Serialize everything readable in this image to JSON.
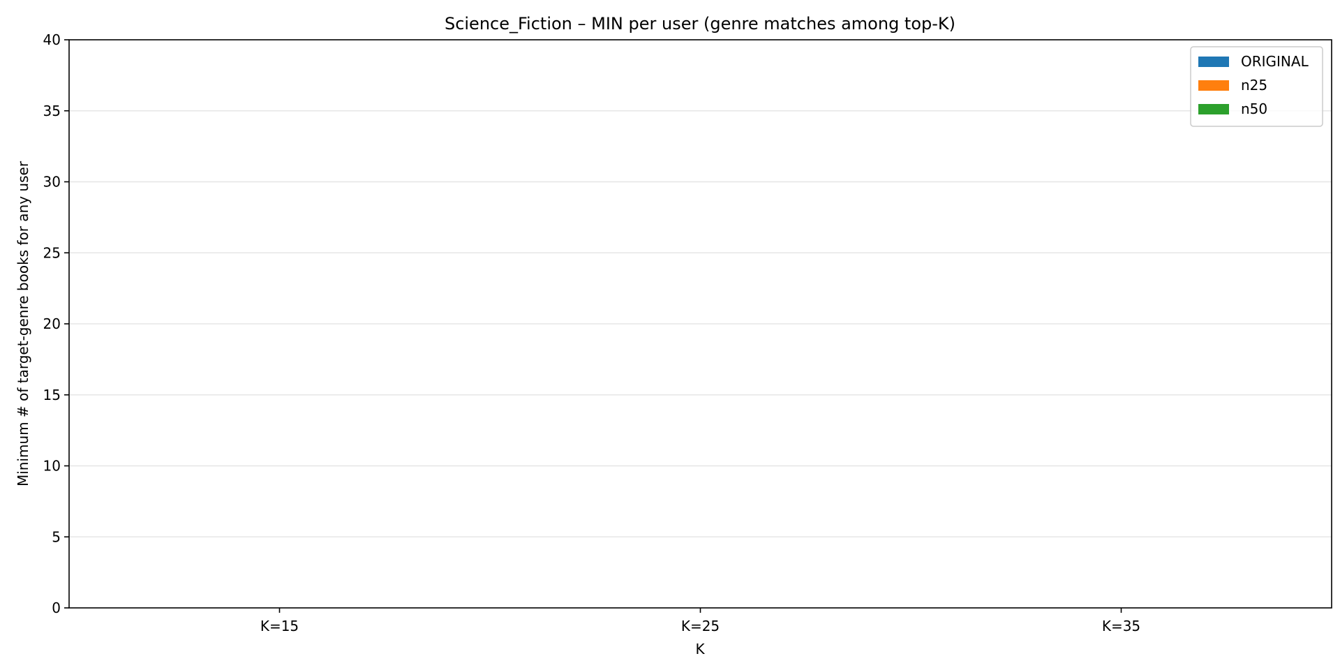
{
  "chart_data": {
    "type": "bar",
    "title": "Science_Fiction – MIN per user (genre matches among top-K)",
    "xlabel": "K",
    "ylabel": "Minimum # of target-genre books for any user",
    "categories": [
      "K=15",
      "K=25",
      "K=35"
    ],
    "series": [
      {
        "name": "ORIGINAL",
        "color": "#1f77b4",
        "values": [
          0,
          0,
          0
        ]
      },
      {
        "name": "n25",
        "color": "#ff7f0e",
        "values": [
          0,
          0,
          0
        ]
      },
      {
        "name": "n50",
        "color": "#2ca02c",
        "values": [
          0,
          0,
          0
        ]
      }
    ],
    "ylim": [
      0,
      40
    ],
    "yticks": [
      0,
      5,
      10,
      15,
      20,
      25,
      30,
      35,
      40
    ],
    "grid": "y",
    "legend_position": "top-right"
  }
}
